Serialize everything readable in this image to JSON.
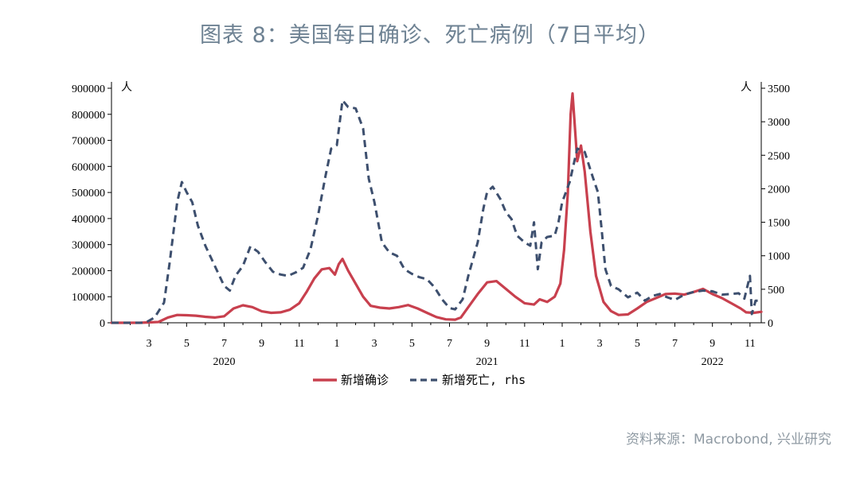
{
  "title": "图表 8：美国每日确诊、死亡病例（7日平均）",
  "source": "资料来源：Macrobond, 兴业研究",
  "chart_data": {
    "type": "line",
    "left_unit": "人",
    "right_unit": "人",
    "y_left": {
      "min": 0,
      "max": 900000,
      "ticks": [
        0,
        100000,
        200000,
        300000,
        400000,
        500000,
        600000,
        700000,
        800000,
        900000
      ]
    },
    "y_right": {
      "min": 0,
      "max": 3500,
      "ticks": [
        0,
        500,
        1000,
        1500,
        2000,
        2500,
        3000,
        3500
      ]
    },
    "x_range": [
      1.0,
      35.6
    ],
    "x_ticks": [
      {
        "t": 3,
        "label": "3"
      },
      {
        "t": 5,
        "label": "5"
      },
      {
        "t": 7,
        "label": "7"
      },
      {
        "t": 9,
        "label": "9"
      },
      {
        "t": 11,
        "label": "11"
      },
      {
        "t": 13,
        "label": "1"
      },
      {
        "t": 15,
        "label": "3"
      },
      {
        "t": 17,
        "label": "5"
      },
      {
        "t": 19,
        "label": "7"
      },
      {
        "t": 21,
        "label": "9"
      },
      {
        "t": 23,
        "label": "11"
      },
      {
        "t": 25,
        "label": "1"
      },
      {
        "t": 27,
        "label": "3"
      },
      {
        "t": 29,
        "label": "5"
      },
      {
        "t": 31,
        "label": "7"
      },
      {
        "t": 33,
        "label": "9"
      },
      {
        "t": 35,
        "label": "11"
      }
    ],
    "year_labels": [
      {
        "t": 7,
        "label": "2020"
      },
      {
        "t": 21,
        "label": "2021"
      },
      {
        "t": 33,
        "label": "2022"
      }
    ],
    "legend": [
      "新增确诊",
      "新增死亡, rhs"
    ],
    "series": [
      {
        "name": "新增确诊",
        "axis": "left",
        "color": "#c8404e",
        "style": "solid",
        "points": [
          [
            1.0,
            0
          ],
          [
            2.5,
            0
          ],
          [
            3.5,
            3000
          ],
          [
            4.0,
            20000
          ],
          [
            4.5,
            30000
          ],
          [
            5.0,
            29000
          ],
          [
            5.5,
            27000
          ],
          [
            6.0,
            23000
          ],
          [
            6.5,
            20000
          ],
          [
            7.0,
            25000
          ],
          [
            7.5,
            55000
          ],
          [
            8.0,
            67000
          ],
          [
            8.5,
            60000
          ],
          [
            9.0,
            44000
          ],
          [
            9.5,
            38000
          ],
          [
            10.0,
            40000
          ],
          [
            10.5,
            50000
          ],
          [
            11.0,
            75000
          ],
          [
            11.4,
            120000
          ],
          [
            11.8,
            170000
          ],
          [
            12.2,
            205000
          ],
          [
            12.6,
            210000
          ],
          [
            12.9,
            185000
          ],
          [
            13.1,
            225000
          ],
          [
            13.3,
            245000
          ],
          [
            13.6,
            200000
          ],
          [
            14.0,
            150000
          ],
          [
            14.4,
            100000
          ],
          [
            14.8,
            65000
          ],
          [
            15.3,
            58000
          ],
          [
            15.8,
            55000
          ],
          [
            16.3,
            60000
          ],
          [
            16.8,
            68000
          ],
          [
            17.3,
            55000
          ],
          [
            17.8,
            38000
          ],
          [
            18.3,
            22000
          ],
          [
            18.8,
            13000
          ],
          [
            19.3,
            12000
          ],
          [
            19.6,
            20000
          ],
          [
            20.0,
            60000
          ],
          [
            20.5,
            110000
          ],
          [
            21.0,
            155000
          ],
          [
            21.5,
            160000
          ],
          [
            22.0,
            130000
          ],
          [
            22.5,
            100000
          ],
          [
            23.0,
            75000
          ],
          [
            23.5,
            70000
          ],
          [
            23.8,
            90000
          ],
          [
            24.2,
            80000
          ],
          [
            24.6,
            100000
          ],
          [
            24.9,
            150000
          ],
          [
            25.1,
            280000
          ],
          [
            25.3,
            500000
          ],
          [
            25.45,
            800000
          ],
          [
            25.55,
            880000
          ],
          [
            25.65,
            780000
          ],
          [
            25.8,
            620000
          ],
          [
            26.0,
            680000
          ],
          [
            26.2,
            580000
          ],
          [
            26.5,
            350000
          ],
          [
            26.8,
            180000
          ],
          [
            27.2,
            80000
          ],
          [
            27.6,
            45000
          ],
          [
            28.0,
            30000
          ],
          [
            28.5,
            32000
          ],
          [
            29.0,
            55000
          ],
          [
            29.5,
            80000
          ],
          [
            30.0,
            95000
          ],
          [
            30.5,
            110000
          ],
          [
            31.0,
            112000
          ],
          [
            31.5,
            108000
          ],
          [
            32.0,
            118000
          ],
          [
            32.5,
            130000
          ],
          [
            33.0,
            110000
          ],
          [
            33.5,
            95000
          ],
          [
            34.0,
            75000
          ],
          [
            34.5,
            55000
          ],
          [
            34.8,
            40000
          ],
          [
            35.2,
            38000
          ],
          [
            35.6,
            42000
          ]
        ]
      },
      {
        "name": "新增死亡, rhs",
        "axis": "right",
        "color": "#3d4f6e",
        "style": "dashed",
        "points": [
          [
            1.0,
            0
          ],
          [
            2.8,
            0
          ],
          [
            3.3,
            80
          ],
          [
            3.8,
            300
          ],
          [
            4.1,
            900
          ],
          [
            4.5,
            1800
          ],
          [
            4.75,
            2100
          ],
          [
            5.0,
            1950
          ],
          [
            5.3,
            1800
          ],
          [
            5.6,
            1450
          ],
          [
            6.0,
            1150
          ],
          [
            6.5,
            850
          ],
          [
            7.0,
            550
          ],
          [
            7.3,
            480
          ],
          [
            7.6,
            700
          ],
          [
            8.0,
            850
          ],
          [
            8.4,
            1140
          ],
          [
            8.8,
            1060
          ],
          [
            9.2,
            900
          ],
          [
            9.6,
            760
          ],
          [
            10.0,
            720
          ],
          [
            10.4,
            700
          ],
          [
            10.8,
            750
          ],
          [
            11.2,
            820
          ],
          [
            11.6,
            1100
          ],
          [
            12.0,
            1600
          ],
          [
            12.4,
            2200
          ],
          [
            12.7,
            2600
          ],
          [
            13.0,
            2650
          ],
          [
            13.3,
            3320
          ],
          [
            13.6,
            3220
          ],
          [
            14.0,
            3200
          ],
          [
            14.4,
            2900
          ],
          [
            14.7,
            2150
          ],
          [
            15.0,
            1800
          ],
          [
            15.4,
            1200
          ],
          [
            15.8,
            1050
          ],
          [
            16.2,
            1000
          ],
          [
            16.6,
            800
          ],
          [
            17.0,
            730
          ],
          [
            17.4,
            680
          ],
          [
            17.8,
            650
          ],
          [
            18.2,
            530
          ],
          [
            18.6,
            350
          ],
          [
            19.0,
            220
          ],
          [
            19.3,
            200
          ],
          [
            19.7,
            350
          ],
          [
            20.0,
            700
          ],
          [
            20.5,
            1200
          ],
          [
            20.8,
            1700
          ],
          [
            21.0,
            1950
          ],
          [
            21.3,
            2030
          ],
          [
            21.7,
            1850
          ],
          [
            22.0,
            1650
          ],
          [
            22.3,
            1550
          ],
          [
            22.6,
            1300
          ],
          [
            23.0,
            1200
          ],
          [
            23.3,
            1150
          ],
          [
            23.5,
            1500
          ],
          [
            23.7,
            800
          ],
          [
            23.9,
            1200
          ],
          [
            24.2,
            1280
          ],
          [
            24.6,
            1300
          ],
          [
            24.8,
            1500
          ],
          [
            25.0,
            1800
          ],
          [
            25.4,
            2100
          ],
          [
            25.8,
            2600
          ],
          [
            26.2,
            2550
          ],
          [
            26.6,
            2200
          ],
          [
            26.9,
            1950
          ],
          [
            27.1,
            1400
          ],
          [
            27.3,
            800
          ],
          [
            27.6,
            550
          ],
          [
            28.0,
            500
          ],
          [
            28.5,
            380
          ],
          [
            29.0,
            450
          ],
          [
            29.4,
            330
          ],
          [
            29.8,
            400
          ],
          [
            30.2,
            430
          ],
          [
            30.6,
            380
          ],
          [
            31.0,
            340
          ],
          [
            31.5,
            420
          ],
          [
            32.0,
            460
          ],
          [
            32.5,
            480
          ],
          [
            33.0,
            470
          ],
          [
            33.5,
            420
          ],
          [
            34.0,
            430
          ],
          [
            34.4,
            440
          ],
          [
            34.7,
            360
          ],
          [
            35.0,
            700
          ],
          [
            35.1,
            130
          ],
          [
            35.3,
            330
          ],
          [
            35.6,
            330
          ]
        ]
      }
    ]
  }
}
